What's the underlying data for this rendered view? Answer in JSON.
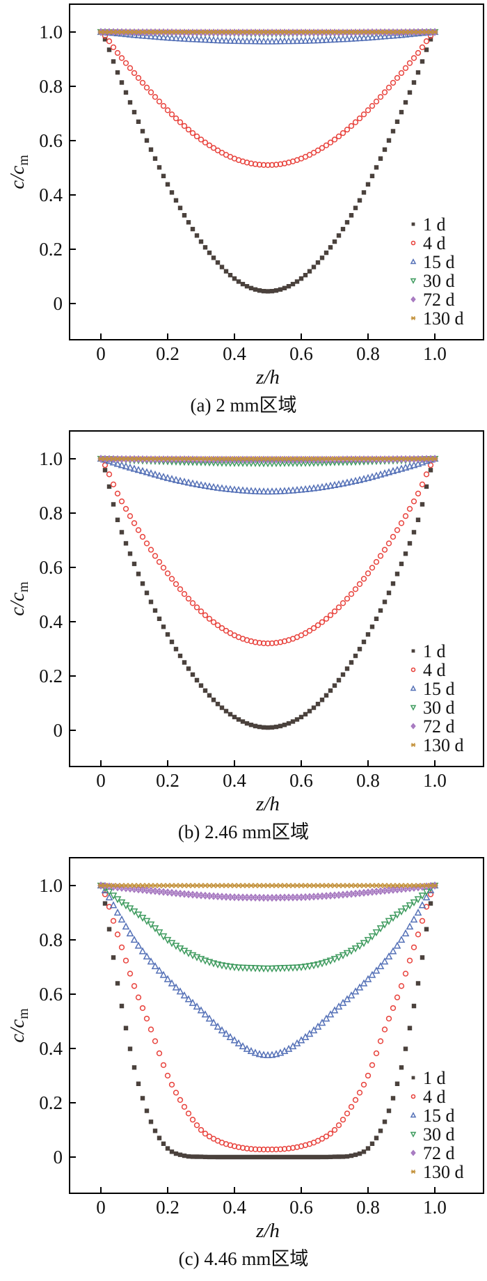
{
  "figure": {
    "y_axis_label_main": "c/c",
    "y_axis_label_sub": "m",
    "x_axis_label": "z/h"
  },
  "chart_data": [
    {
      "type": "scatter",
      "caption": "(a) 2 mm区域",
      "xlabel": "z/h",
      "ylabel": "c/c_m",
      "x_ticks": [
        "0",
        "0.2",
        "0.4",
        "0.6",
        "0.8",
        "1.0"
      ],
      "y_ticks": [
        "0",
        "0.2",
        "0.4",
        "0.6",
        "0.8",
        "1.0"
      ],
      "xlim": [
        -0.09,
        1.15
      ],
      "ylim": [
        -0.11,
        1.1
      ],
      "grid": false,
      "legend_position": "inside-right-bottom",
      "x": [
        0,
        0.05,
        0.1,
        0.15,
        0.2,
        0.25,
        0.3,
        0.35,
        0.4,
        0.45,
        0.5,
        0.55,
        0.6,
        0.65,
        0.7,
        0.75,
        0.8,
        0.85,
        0.9,
        0.95,
        1
      ],
      "series": [
        {
          "name": "1 d",
          "marker": "square-filled",
          "color": "#4a413c",
          "values": [
            1,
            0.851,
            0.705,
            0.567,
            0.439,
            0.325,
            0.228,
            0.151,
            0.092,
            0.057,
            0.045,
            0.057,
            0.092,
            0.151,
            0.228,
            0.325,
            0.439,
            0.567,
            0.705,
            0.851,
            1
          ]
        },
        {
          "name": "4 d",
          "marker": "circle-open",
          "color": "#e8423c",
          "values": [
            1,
            0.923,
            0.849,
            0.778,
            0.712,
            0.654,
            0.604,
            0.564,
            0.534,
            0.516,
            0.51,
            0.516,
            0.534,
            0.564,
            0.604,
            0.654,
            0.712,
            0.778,
            0.849,
            0.923,
            1
          ]
        },
        {
          "name": "15 d",
          "marker": "triangle-up-open",
          "color": "#5571b7",
          "values": [
            1,
            0.995,
            0.989,
            0.984,
            0.979,
            0.975,
            0.972,
            0.969,
            0.967,
            0.966,
            0.965,
            0.966,
            0.967,
            0.969,
            0.972,
            0.975,
            0.979,
            0.984,
            0.989,
            0.995,
            1
          ]
        },
        {
          "name": "30 d",
          "marker": "triangle-down-open",
          "color": "#3f9b5f",
          "values": [
            1,
            0.999,
            0.998,
            0.998,
            0.997,
            0.997,
            0.996,
            0.996,
            0.996,
            0.995,
            0.995,
            0.995,
            0.996,
            0.996,
            0.996,
            0.997,
            0.997,
            0.998,
            0.998,
            0.999,
            1
          ]
        },
        {
          "name": "72 d",
          "marker": "diamond-cross-open",
          "color": "#a678c0",
          "values": [
            1,
            1,
            0.999,
            0.999,
            0.999,
            0.998,
            0.998,
            0.998,
            0.998,
            0.998,
            0.998,
            0.998,
            0.998,
            0.998,
            0.998,
            0.998,
            0.999,
            0.999,
            0.999,
            1,
            1
          ]
        },
        {
          "name": "130 d",
          "marker": "x-hline",
          "color": "#c3913a",
          "values": [
            1,
            1,
            1,
            1,
            1,
            1,
            1,
            1,
            1,
            1,
            1,
            1,
            1,
            1,
            1,
            1,
            1,
            1,
            1,
            1,
            1
          ]
        }
      ]
    },
    {
      "type": "scatter",
      "caption": "(b) 2.46 mm区域",
      "xlabel": "z/h",
      "ylabel": "c/c_m",
      "x_ticks": [
        "0",
        "0.2",
        "0.4",
        "0.6",
        "0.8",
        "1.0"
      ],
      "y_ticks": [
        "0",
        "0.2",
        "0.4",
        "0.6",
        "0.8",
        "1.0"
      ],
      "xlim": [
        -0.09,
        1.15
      ],
      "ylim": [
        -0.11,
        1.1
      ],
      "grid": false,
      "legend_position": "inside-right-bottom",
      "x": [
        0,
        0.05,
        0.1,
        0.15,
        0.2,
        0.25,
        0.3,
        0.35,
        0.4,
        0.45,
        0.5,
        0.55,
        0.6,
        0.65,
        0.7,
        0.75,
        0.8,
        0.85,
        0.9,
        0.95,
        1
      ],
      "series": [
        {
          "name": "1 d",
          "marker": "square-filled",
          "color": "#4a413c",
          "values": [
            1,
            0.775,
            0.613,
            0.473,
            0.353,
            0.25,
            0.165,
            0.097,
            0.049,
            0.02,
            0.01,
            0.02,
            0.049,
            0.097,
            0.165,
            0.25,
            0.353,
            0.473,
            0.613,
            0.775,
            1
          ]
        },
        {
          "name": "4 d",
          "marker": "circle-open",
          "color": "#e8423c",
          "values": [
            1,
            0.872,
            0.763,
            0.665,
            0.578,
            0.502,
            0.438,
            0.387,
            0.35,
            0.328,
            0.32,
            0.328,
            0.35,
            0.387,
            0.438,
            0.502,
            0.578,
            0.665,
            0.763,
            0.872,
            1
          ]
        },
        {
          "name": "15 d",
          "marker": "triangle-up-open",
          "color": "#5571b7",
          "values": [
            1,
            0.981,
            0.963,
            0.946,
            0.929,
            0.915,
            0.903,
            0.893,
            0.886,
            0.881,
            0.879,
            0.881,
            0.886,
            0.893,
            0.903,
            0.915,
            0.929,
            0.946,
            0.963,
            0.981,
            1
          ]
        },
        {
          "name": "30 d",
          "marker": "triangle-down-open",
          "color": "#3f9b5f",
          "values": [
            1,
            0.998,
            0.995,
            0.993,
            0.991,
            0.989,
            0.988,
            0.986,
            0.985,
            0.985,
            0.984,
            0.985,
            0.985,
            0.986,
            0.988,
            0.989,
            0.991,
            0.993,
            0.995,
            0.998,
            1
          ]
        },
        {
          "name": "72 d",
          "marker": "diamond-cross-open",
          "color": "#a678c0",
          "values": [
            1,
            0.999,
            0.999,
            0.998,
            0.998,
            0.998,
            0.997,
            0.997,
            0.997,
            0.997,
            0.997,
            0.997,
            0.997,
            0.997,
            0.997,
            0.998,
            0.998,
            0.998,
            0.999,
            0.999,
            1
          ]
        },
        {
          "name": "130 d",
          "marker": "x-hline",
          "color": "#c3913a",
          "values": [
            1,
            1,
            1,
            1,
            1,
            1,
            1,
            1,
            1,
            1,
            1,
            1,
            1,
            1,
            1,
            1,
            1,
            1,
            1,
            1,
            1
          ]
        }
      ]
    },
    {
      "type": "scatter",
      "caption": "(c) 4.46 mm区域",
      "xlabel": "z/h",
      "ylabel": "c/c_m",
      "x_ticks": [
        "0",
        "0.2",
        "0.4",
        "0.6",
        "0.8",
        "1.0"
      ],
      "y_ticks": [
        "0",
        "0.2",
        "0.4",
        "0.6",
        "0.8",
        "1.0"
      ],
      "xlim": [
        -0.09,
        1.15
      ],
      "ylim": [
        -0.11,
        1.1
      ],
      "grid": false,
      "legend_position": "inside-right-bottom",
      "x": [
        0,
        0.05,
        0.1,
        0.15,
        0.2,
        0.25,
        0.3,
        0.35,
        0.4,
        0.45,
        0.5,
        0.55,
        0.6,
        0.65,
        0.7,
        0.75,
        0.8,
        0.85,
        0.9,
        0.95,
        1
      ],
      "series": [
        {
          "name": "1 d",
          "marker": "square-filled",
          "color": "#4a413c",
          "values": [
            1,
            0.64,
            0.33,
            0.13,
            0.032,
            0.005,
            0.001,
            0,
            0,
            0,
            0,
            0,
            0,
            0,
            0.001,
            0.005,
            0.032,
            0.13,
            0.33,
            0.64,
            1
          ]
        },
        {
          "name": "4 d",
          "marker": "circle-open",
          "color": "#e8423c",
          "values": [
            1,
            0.82,
            0.63,
            0.47,
            0.3,
            0.185,
            0.1,
            0.06,
            0.04,
            0.03,
            0.028,
            0.03,
            0.04,
            0.06,
            0.1,
            0.185,
            0.3,
            0.47,
            0.63,
            0.82,
            1
          ]
        },
        {
          "name": "15 d",
          "marker": "triangle-up-open",
          "color": "#5571b7",
          "values": [
            1,
            0.9,
            0.8,
            0.72,
            0.655,
            0.595,
            0.54,
            0.48,
            0.43,
            0.39,
            0.375,
            0.39,
            0.43,
            0.48,
            0.54,
            0.595,
            0.655,
            0.72,
            0.8,
            0.9,
            1
          ]
        },
        {
          "name": "30 d",
          "marker": "triangle-down-open",
          "color": "#3f9b5f",
          "values": [
            1,
            0.95,
            0.905,
            0.857,
            0.8,
            0.76,
            0.73,
            0.71,
            0.7,
            0.697,
            0.695,
            0.697,
            0.7,
            0.71,
            0.73,
            0.76,
            0.8,
            0.857,
            0.905,
            0.95,
            1
          ]
        },
        {
          "name": "72 d",
          "marker": "diamond-cross-open",
          "color": "#a678c0",
          "values": [
            1,
            0.993,
            0.987,
            0.981,
            0.975,
            0.969,
            0.964,
            0.96,
            0.957,
            0.956,
            0.955,
            0.956,
            0.957,
            0.96,
            0.964,
            0.969,
            0.975,
            0.981,
            0.987,
            0.993,
            1
          ]
        },
        {
          "name": "130 d",
          "marker": "x-hline",
          "color": "#c3913a",
          "values": [
            1,
            1,
            1,
            1,
            1,
            1,
            1,
            1,
            1,
            1,
            1,
            1,
            1,
            1,
            1,
            1,
            1,
            1,
            1,
            1,
            1
          ]
        }
      ]
    }
  ]
}
